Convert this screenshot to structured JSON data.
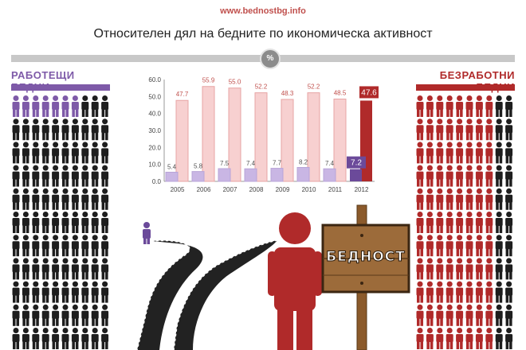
{
  "header": {
    "site": "www.bednostbg.info",
    "title": "Относителен дял на бедните по икономическа активност",
    "percent_badge": "%"
  },
  "left_panel": {
    "title": "РАБОТЕЩИ БЕДНИ",
    "color": "#7e5aa8",
    "highlighted_figures": 7,
    "total_figures_first_row": 10
  },
  "right_panel": {
    "title": "БЕЗРАБОТНИ БЕДНИ",
    "color": "#b02a2a",
    "highlighted_figures_first_row": 8,
    "total_figures_first_row": 10
  },
  "illustration": {
    "sign_text": "БЕДНОСТ"
  },
  "chart_data": {
    "type": "bar",
    "categories": [
      "2005",
      "2006",
      "2007",
      "2008",
      "2009",
      "2010",
      "2011",
      "2012"
    ],
    "series": [
      {
        "name": "",
        "color": "#c9b6e4",
        "highlight_color": "#6b4a9a",
        "values": [
          5.4,
          5.8,
          7.5,
          7.4,
          7.7,
          8.2,
          7.4,
          7.2
        ]
      },
      {
        "name": "",
        "color": "#f7d0d0",
        "highlight_color": "#b02a2a",
        "values": [
          47.7,
          55.9,
          55.0,
          52.2,
          48.3,
          52.2,
          48.5,
          47.6
        ]
      }
    ],
    "y_ticks": [
      "0.0",
      "10.0",
      "20.0",
      "30.0",
      "40.0",
      "50.0",
      "60.0"
    ],
    "ylim": [
      0,
      60
    ],
    "grid": false,
    "title": "",
    "xlabel": "",
    "ylabel": ""
  }
}
